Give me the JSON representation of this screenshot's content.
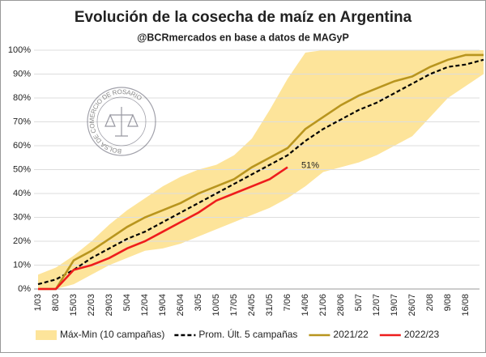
{
  "chart_data": {
    "type": "line",
    "title": "Evolución de la cosecha de maíz en Argentina",
    "subtitle": "@BCRmercados en base a datos de MAGyP",
    "logo_text": "BOLSA DE COMERCIO DE ROSARIO",
    "categories": [
      "1/03",
      "8/03",
      "15/03",
      "22/03",
      "29/03",
      "5/04",
      "12/04",
      "19/04",
      "26/04",
      "3/05",
      "10/05",
      "17/05",
      "24/05",
      "31/05",
      "7/06",
      "14/06",
      "21/06",
      "28/06",
      "5/07",
      "12/07",
      "19/07",
      "26/07",
      "2/08",
      "9/08",
      "16/08",
      null
    ],
    "ylim": [
      0,
      100
    ],
    "yticks": [
      {
        "value": 0,
        "label": "0%"
      },
      {
        "value": 10,
        "label": "10%"
      },
      {
        "value": 20,
        "label": "20%"
      },
      {
        "value": 30,
        "label": "30%"
      },
      {
        "value": 40,
        "label": "40%"
      },
      {
        "value": 50,
        "label": "50%"
      },
      {
        "value": 60,
        "label": "60%"
      },
      {
        "value": 70,
        "label": "70%"
      },
      {
        "value": 80,
        "label": "80%"
      },
      {
        "value": 90,
        "label": "90%"
      },
      {
        "value": 100,
        "label": "100%"
      }
    ],
    "grid": true,
    "band": {
      "name": "Máx-Min (10 campañas)",
      "color": "#fde49a",
      "upper": [
        6,
        9,
        14,
        20,
        27,
        33,
        38,
        43,
        47,
        50,
        52,
        56,
        63,
        75,
        88,
        99,
        100,
        100,
        100,
        100,
        100,
        100,
        100,
        100,
        100,
        100
      ],
      "lower": [
        0,
        0,
        2,
        6,
        10,
        13,
        16,
        17,
        19,
        22,
        25,
        28,
        31,
        34,
        38,
        43,
        49,
        51,
        53,
        56,
        60,
        64,
        72,
        80,
        85,
        90
      ]
    },
    "series": [
      {
        "name": "Prom. Últ. 5 campañas",
        "color": "#000000",
        "dashed": true,
        "values": [
          2,
          4,
          8,
          13,
          17,
          21,
          24,
          28,
          32,
          36,
          40,
          44,
          48,
          52,
          56,
          62,
          67,
          71,
          75,
          78,
          82,
          86,
          90,
          93,
          94,
          96
        ]
      },
      {
        "name": "2021/22",
        "color": "#b8951e",
        "dashed": false,
        "values": [
          0,
          0,
          12,
          16,
          21,
          26,
          30,
          33,
          36,
          40,
          43,
          46,
          51,
          55,
          59,
          67,
          72,
          77,
          81,
          84,
          87,
          89,
          93,
          96,
          98,
          98
        ]
      },
      {
        "name": "2022/23",
        "color": "#ee1c1c",
        "dashed": false,
        "values": [
          0,
          0,
          8,
          10,
          13,
          17,
          20,
          24,
          28,
          32,
          37,
          40,
          43,
          46,
          51,
          null,
          null,
          null,
          null,
          null,
          null,
          null,
          null,
          null,
          null,
          null
        ],
        "value_labels": [
          null,
          null,
          null,
          null,
          null,
          null,
          null,
          null,
          null,
          null,
          null,
          null,
          null,
          null,
          "51%",
          null,
          null,
          null,
          null,
          null,
          null,
          null,
          null,
          null,
          null,
          null
        ]
      }
    ]
  }
}
